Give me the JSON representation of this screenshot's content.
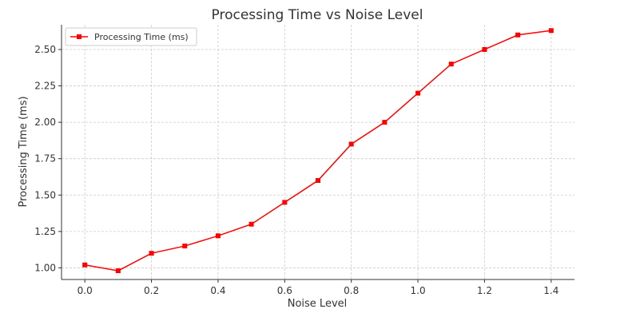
{
  "chart_data": {
    "type": "line",
    "title": "Processing Time vs Noise Level",
    "xlabel": "Noise Level",
    "ylabel": "Processing Time (ms)",
    "xlim": [
      -0.07,
      1.47
    ],
    "ylim": [
      0.92,
      2.67
    ],
    "x_ticks": [
      0.0,
      0.2,
      0.4,
      0.6,
      0.8,
      1.0,
      1.2,
      1.4
    ],
    "x_tick_labels": [
      "0.0",
      "0.2",
      "0.4",
      "0.6",
      "0.8",
      "1.0",
      "1.2",
      "1.4"
    ],
    "y_ticks": [
      1.0,
      1.25,
      1.5,
      1.75,
      2.0,
      2.25,
      2.5
    ],
    "y_tick_labels": [
      "1.00",
      "1.25",
      "1.50",
      "1.75",
      "2.00",
      "2.25",
      "2.50"
    ],
    "grid": true,
    "legend_position": "top-left",
    "series": [
      {
        "name": "Processing Time (ms)",
        "color": "#ff0000",
        "marker": "square",
        "x": [
          0.0,
          0.1,
          0.2,
          0.3,
          0.4,
          0.5,
          0.6,
          0.7,
          0.8,
          0.9,
          1.0,
          1.1,
          1.2,
          1.3,
          1.4
        ],
        "y": [
          1.02,
          0.98,
          1.1,
          1.15,
          1.22,
          1.3,
          1.45,
          1.6,
          1.85,
          2.0,
          2.2,
          2.4,
          2.5,
          2.6,
          2.63
        ]
      }
    ]
  }
}
